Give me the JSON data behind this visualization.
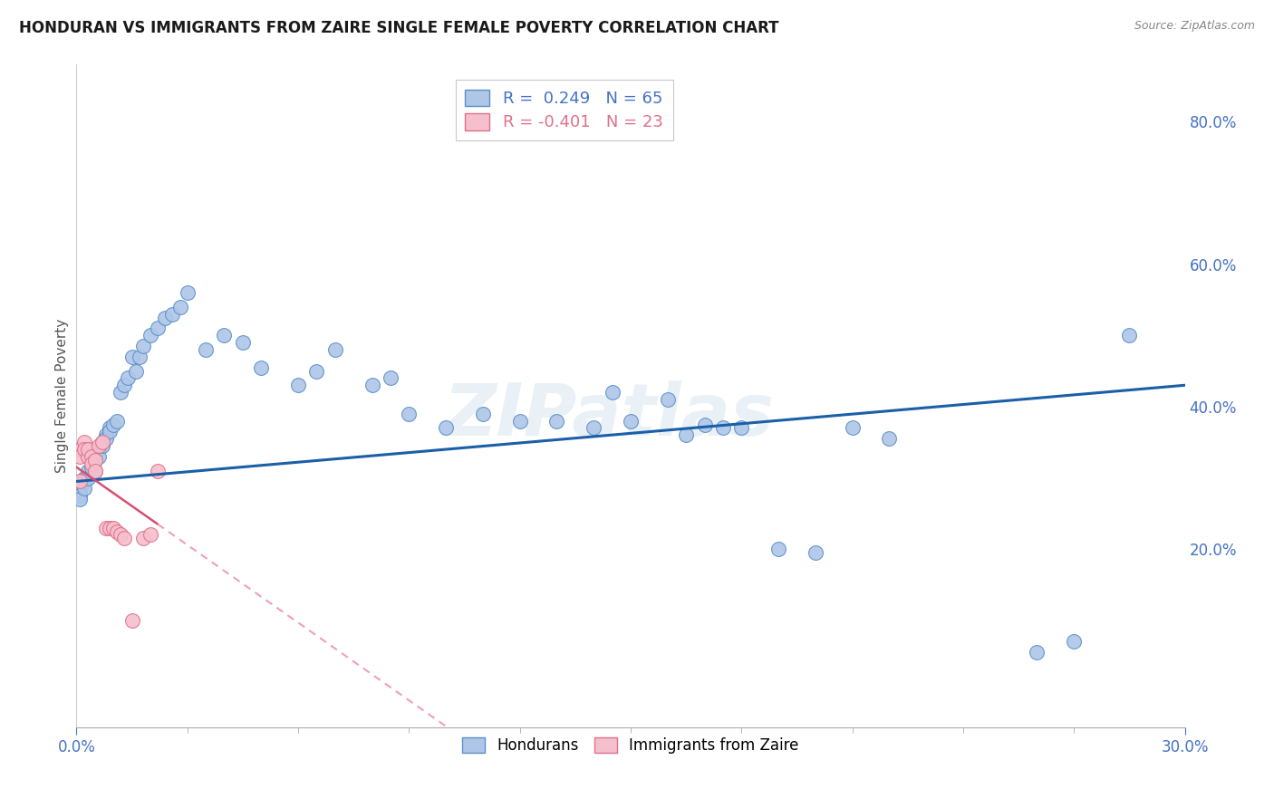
{
  "title": "HONDURAN VS IMMIGRANTS FROM ZAIRE SINGLE FEMALE POVERTY CORRELATION CHART",
  "source": "Source: ZipAtlas.com",
  "ylabel": "Single Female Poverty",
  "right_yticks": [
    0.2,
    0.4,
    0.6,
    0.8
  ],
  "xmin": 0.0,
  "xmax": 0.3,
  "ymin": -0.05,
  "ymax": 0.88,
  "legend_r1": "R =  0.249   N = 65",
  "legend_r2": "R = -0.401   N = 23",
  "hondurans_x": [
    0.001,
    0.001,
    0.001,
    0.002,
    0.002,
    0.002,
    0.003,
    0.003,
    0.004,
    0.004,
    0.005,
    0.005,
    0.005,
    0.006,
    0.006,
    0.007,
    0.007,
    0.008,
    0.008,
    0.009,
    0.009,
    0.01,
    0.011,
    0.012,
    0.013,
    0.014,
    0.015,
    0.016,
    0.017,
    0.018,
    0.02,
    0.022,
    0.024,
    0.026,
    0.028,
    0.03,
    0.035,
    0.04,
    0.045,
    0.05,
    0.06,
    0.065,
    0.07,
    0.08,
    0.085,
    0.09,
    0.1,
    0.11,
    0.12,
    0.13,
    0.14,
    0.145,
    0.15,
    0.16,
    0.165,
    0.17,
    0.175,
    0.18,
    0.19,
    0.2,
    0.21,
    0.22,
    0.26,
    0.27,
    0.285
  ],
  "hondurans_y": [
    0.28,
    0.275,
    0.27,
    0.3,
    0.295,
    0.285,
    0.31,
    0.3,
    0.32,
    0.315,
    0.33,
    0.325,
    0.31,
    0.34,
    0.33,
    0.35,
    0.345,
    0.36,
    0.355,
    0.37,
    0.365,
    0.375,
    0.38,
    0.42,
    0.43,
    0.44,
    0.47,
    0.45,
    0.47,
    0.485,
    0.5,
    0.51,
    0.525,
    0.53,
    0.54,
    0.56,
    0.48,
    0.5,
    0.49,
    0.455,
    0.43,
    0.45,
    0.48,
    0.43,
    0.44,
    0.39,
    0.37,
    0.39,
    0.38,
    0.38,
    0.37,
    0.42,
    0.38,
    0.41,
    0.36,
    0.375,
    0.37,
    0.37,
    0.2,
    0.195,
    0.37,
    0.355,
    0.055,
    0.07,
    0.5
  ],
  "zaire_x": [
    0.001,
    0.001,
    0.001,
    0.002,
    0.002,
    0.003,
    0.003,
    0.004,
    0.004,
    0.005,
    0.005,
    0.006,
    0.007,
    0.008,
    0.009,
    0.01,
    0.011,
    0.012,
    0.013,
    0.015,
    0.018,
    0.02,
    0.022
  ],
  "zaire_y": [
    0.34,
    0.33,
    0.295,
    0.35,
    0.34,
    0.33,
    0.34,
    0.33,
    0.32,
    0.325,
    0.31,
    0.345,
    0.35,
    0.23,
    0.23,
    0.23,
    0.225,
    0.22,
    0.215,
    0.1,
    0.215,
    0.22,
    0.31
  ],
  "blue_color": "#aec6e8",
  "blue_edge": "#5b8fc9",
  "pink_color": "#f5bfcc",
  "pink_edge": "#e0708a",
  "trend_blue_color": "#1a5fa8",
  "trend_pink_solid_color": "#d45070",
  "trend_pink_dashed_color": "#f0a0b5",
  "background": "#ffffff",
  "grid_color": "#cccccc",
  "axis_color": "#4472c4",
  "title_color": "#1a1a1a",
  "ylabel_color": "#555555",
  "source_color": "#888888",
  "watermark_color": "#dce8f0",
  "watermark_text": "ZIPatlas",
  "title_fontsize": 12,
  "tick_fontsize": 12,
  "legend_fontsize": 13,
  "ylabel_fontsize": 11
}
